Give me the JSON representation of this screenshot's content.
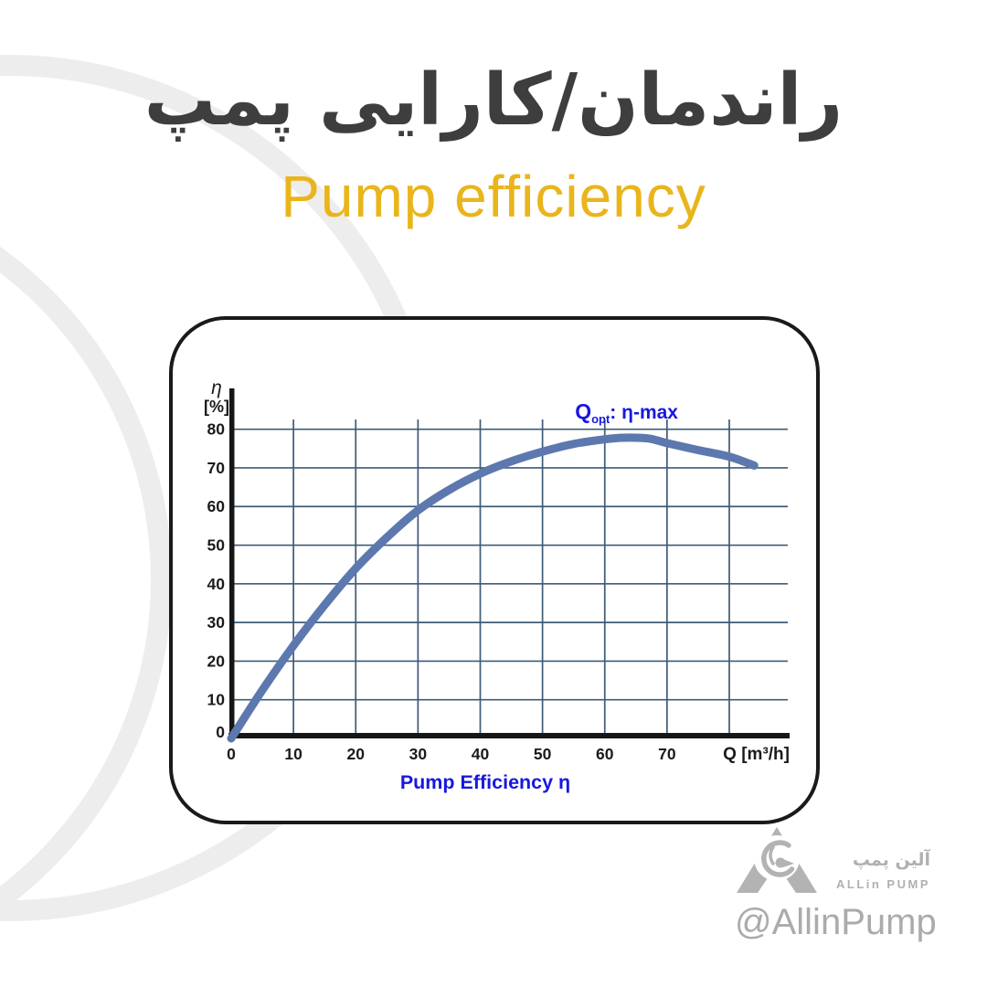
{
  "page": {
    "background_color": "#ffffff"
  },
  "header": {
    "title_fa": "راندمان/کارایی پمپ",
    "subtitle_en": "Pump efficiency",
    "title_color": "#3e3e3e",
    "subtitle_color": "#e9b51b"
  },
  "chart_data": {
    "type": "line",
    "title": "",
    "caption": "Pump Efficiency η",
    "x_axis": {
      "label": "Q [m³/h]",
      "ticks": [
        0,
        10,
        20,
        30,
        40,
        50,
        60,
        70
      ],
      "gridlines": [
        10,
        20,
        30,
        40,
        50,
        60,
        70,
        80
      ],
      "range": [
        0,
        90
      ],
      "grid_on": true
    },
    "y_axis": {
      "label_lines": [
        "η",
        "[%]"
      ],
      "ticks": [
        80,
        70,
        60,
        50,
        40,
        30,
        20,
        10,
        0
      ],
      "gridlines": [
        10,
        20,
        30,
        40,
        50,
        60,
        70,
        80
      ],
      "range": [
        0,
        80
      ],
      "grid_on": true
    },
    "series": [
      {
        "name": "Pump Efficiency η",
        "points": [
          [
            0,
            0
          ],
          [
            5,
            12.5
          ],
          [
            10,
            24
          ],
          [
            15,
            34.5
          ],
          [
            20,
            44
          ],
          [
            25,
            52
          ],
          [
            30,
            59
          ],
          [
            35,
            64.3
          ],
          [
            40,
            68.5
          ],
          [
            45,
            71.7
          ],
          [
            50,
            74.2
          ],
          [
            55,
            76.2
          ],
          [
            60,
            77.4
          ],
          [
            63,
            77.8
          ],
          [
            67,
            77.6
          ],
          [
            70,
            76.4
          ],
          [
            75,
            74.6
          ],
          [
            80,
            72.9
          ],
          [
            84,
            70.6
          ]
        ]
      }
    ],
    "annotation": {
      "prefix": "Q",
      "subscript": "opt",
      "suffix": ": η-max",
      "at_q": 63.5,
      "meaning": "optimal flow at maximum efficiency"
    },
    "colors": {
      "grid": "#3e5b77",
      "axis": "#161616",
      "curve": "#5c78ae",
      "annotation": "#1717e0",
      "caption": "#1717e0",
      "tick_label": "#1b1b1b"
    }
  },
  "footer": {
    "brand_fa": "آلین پمپ",
    "brand_en": "ALLin PUMP",
    "handle": "@AllinPump",
    "color": "#b0b0b0"
  }
}
